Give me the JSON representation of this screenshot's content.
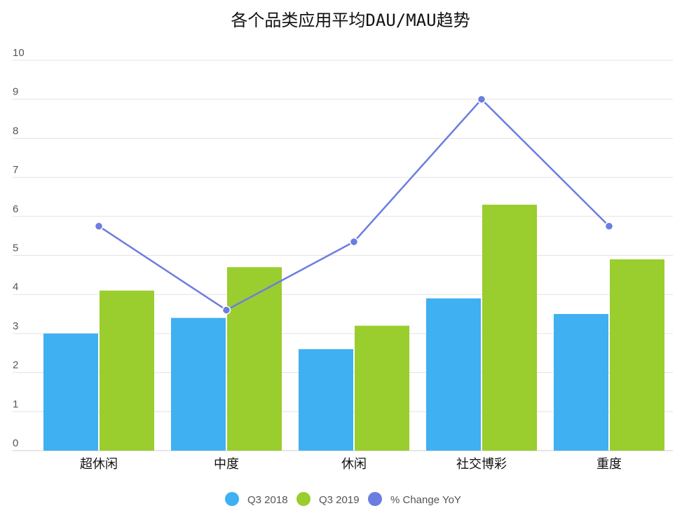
{
  "chart_data": {
    "type": "bar",
    "title": "各个品类应用平均DAU/MAU趋势",
    "categories": [
      "超休闲",
      "中度",
      "休闲",
      "社交博彩",
      "重度"
    ],
    "series": [
      {
        "name": "Q3 2018",
        "type": "bar",
        "color": "#3fb0f2",
        "values": [
          3.0,
          3.4,
          2.6,
          3.9,
          3.5
        ]
      },
      {
        "name": "Q3 2019",
        "type": "bar",
        "color": "#9acd2e",
        "values": [
          4.1,
          4.7,
          3.2,
          6.3,
          4.9
        ]
      },
      {
        "name": "% Change YoY",
        "type": "line",
        "color": "#6b7ee0",
        "axis": "secondary",
        "values": [
          5.75,
          3.6,
          5.35,
          9.0,
          5.75
        ]
      }
    ],
    "xlabel": "",
    "ylabel": "",
    "ylim": [
      0,
      10
    ],
    "yticks": [
      "0",
      "1",
      "2",
      "3",
      "4",
      "5",
      "6",
      "7",
      "8",
      "9",
      "10"
    ],
    "grid": true,
    "legend": "bottom"
  }
}
